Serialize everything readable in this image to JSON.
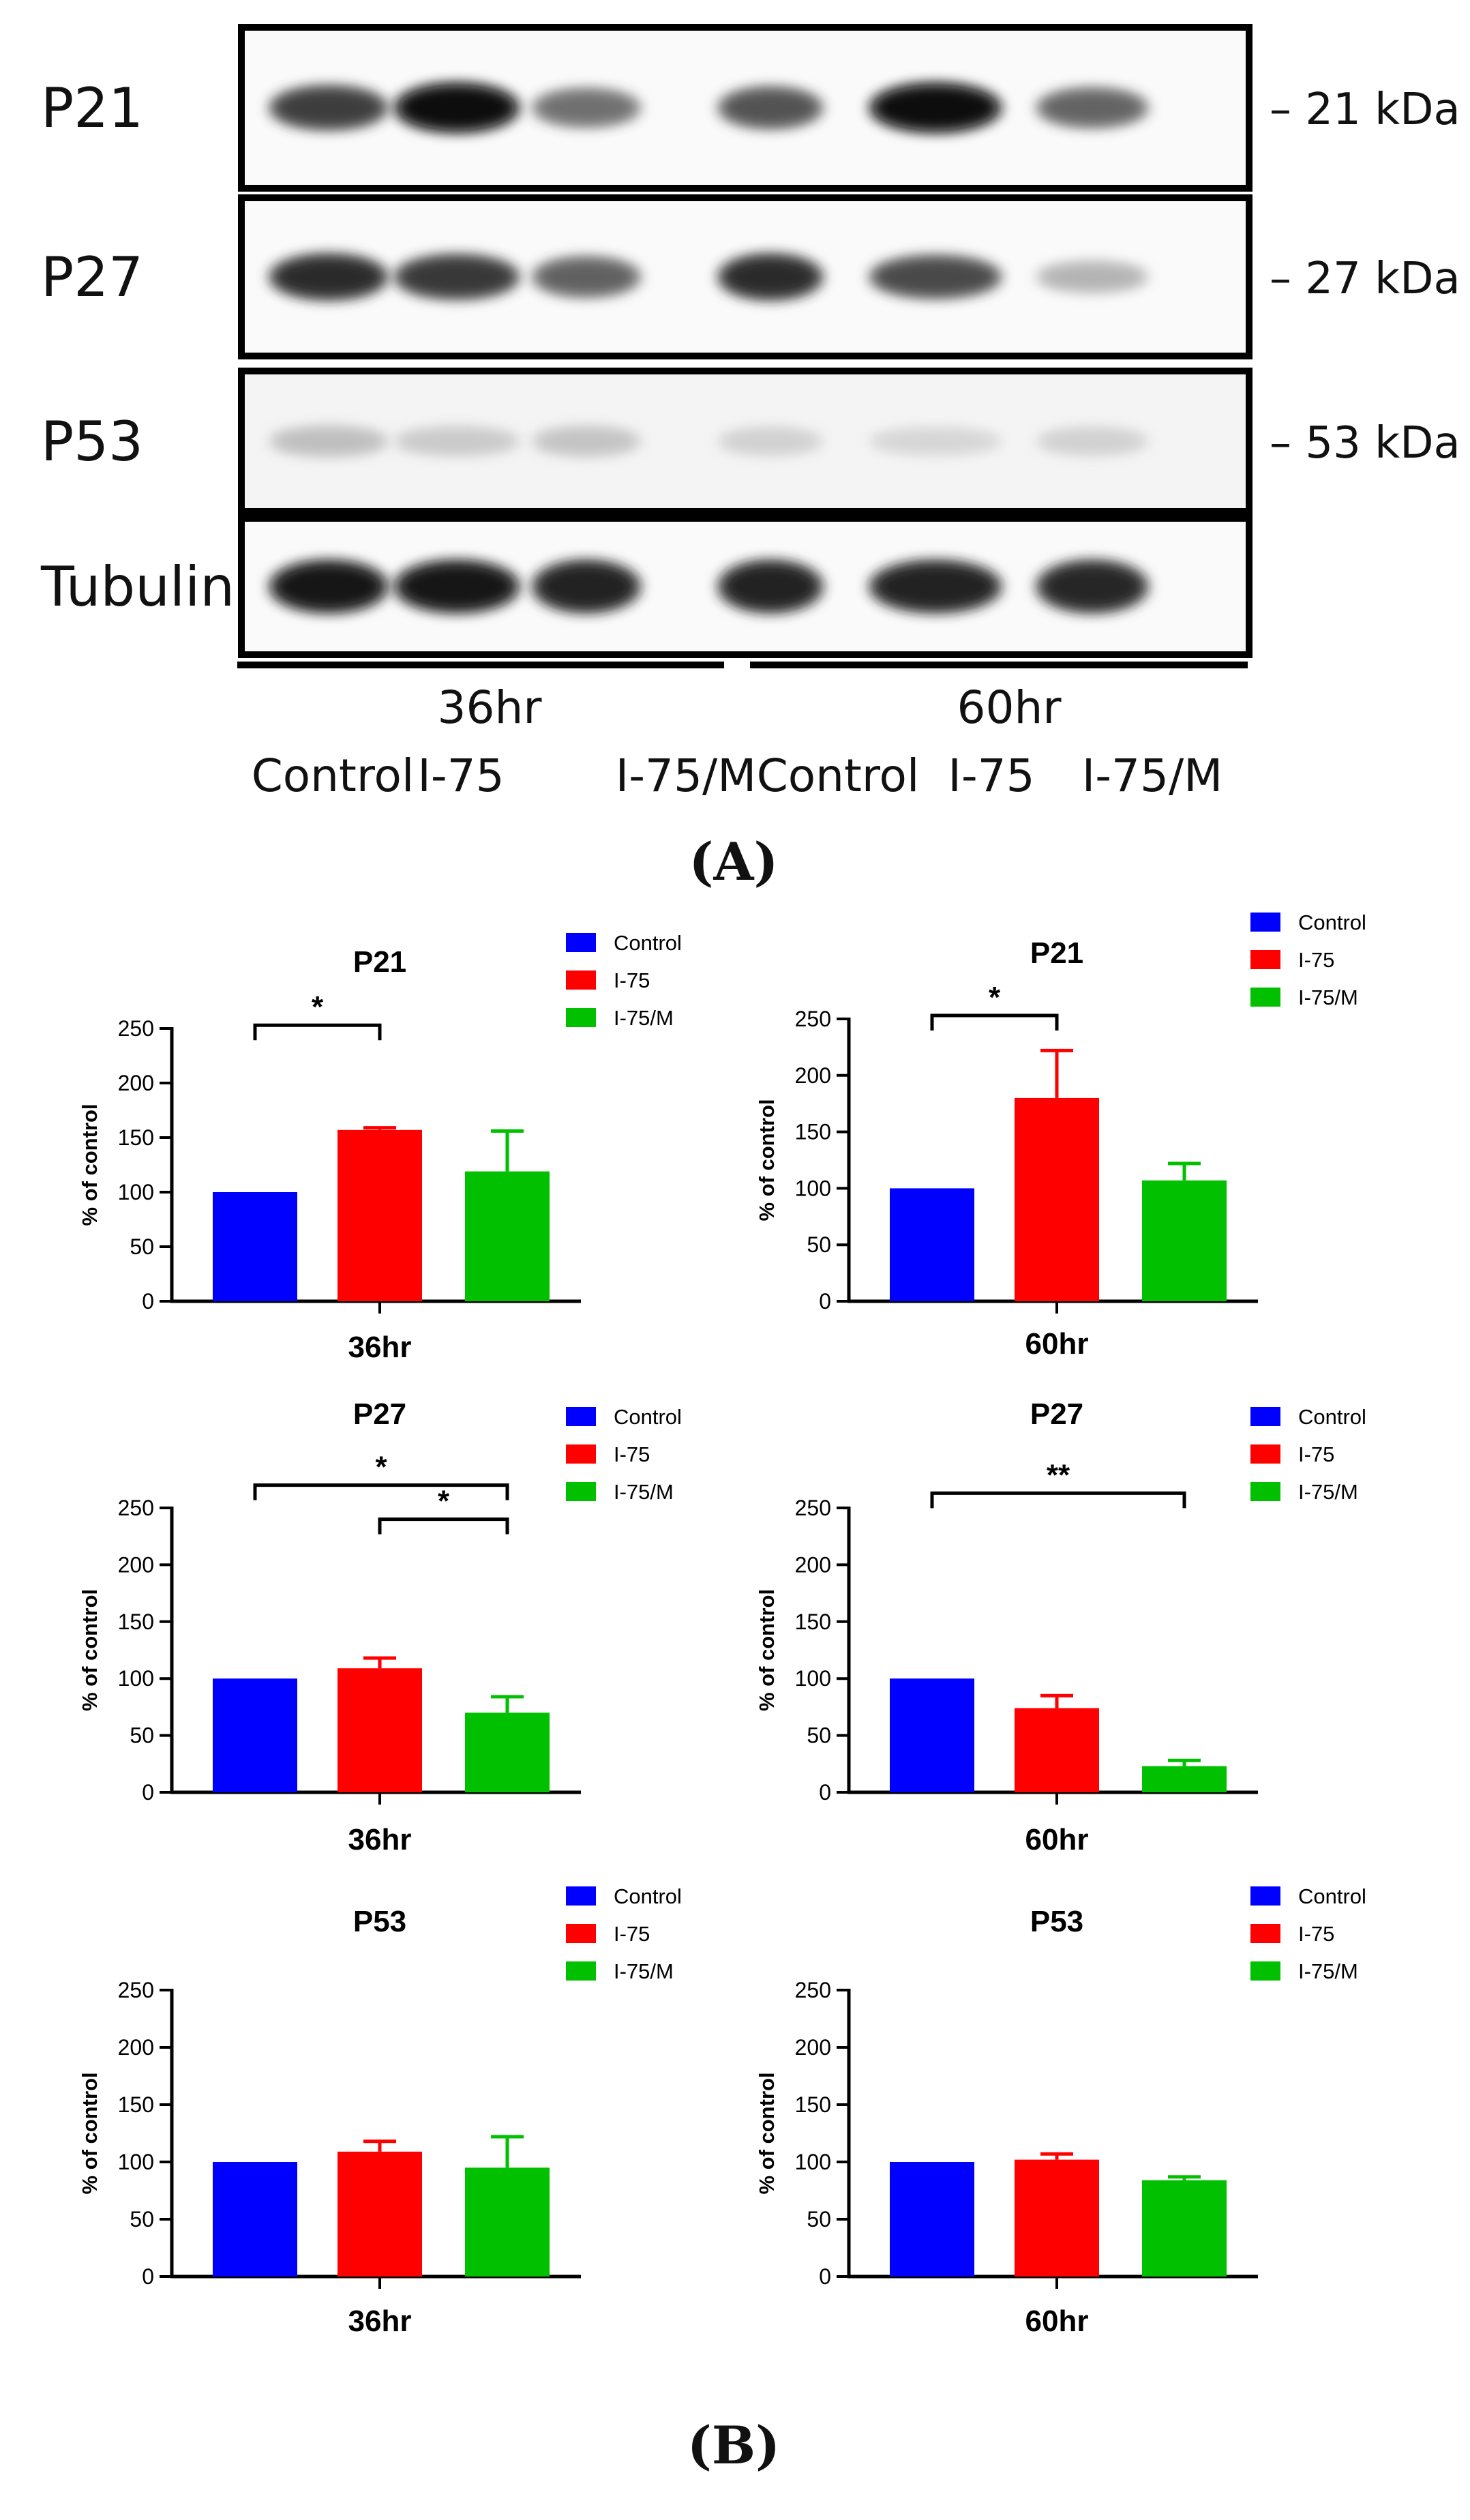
{
  "blot": {
    "rows": [
      {
        "label": "P21",
        "kda": "– 21 kDa",
        "intensities": [
          0.78,
          1.0,
          0.55,
          0.68,
          1.0,
          0.6
        ]
      },
      {
        "label": "P27",
        "kda": "– 27 kDa",
        "intensities": [
          0.85,
          0.8,
          0.62,
          0.85,
          0.72,
          0.25
        ]
      },
      {
        "label": "P53",
        "kda": "– 53 kDa",
        "intensities": [
          0.2,
          0.15,
          0.18,
          0.12,
          0.1,
          0.12
        ]
      },
      {
        "label": "Tubulin",
        "kda": "",
        "intensities": [
          0.95,
          0.95,
          0.9,
          0.9,
          0.9,
          0.88
        ]
      }
    ],
    "groups": [
      "36hr",
      "60hr"
    ],
    "lanes": [
      "Control",
      "I-75",
      "I-75/M",
      "Control",
      "I-75",
      "I-75/M"
    ],
    "panel_label_open": "(",
    "panel_label_letter": "A",
    "panel_label_close": ")"
  },
  "panel_b": {
    "label_open": "(",
    "label_letter": "B",
    "label_close": ")"
  },
  "colors": {
    "Control": "#0000ff",
    "I-75": "#ff0000",
    "I-75/M": "#00c000"
  },
  "chart_data": [
    {
      "type": "bar",
      "title": "P21",
      "xlabel": "36hr",
      "ylabel": "% of control",
      "categories": [
        "Control",
        "I-75",
        "I-75/M"
      ],
      "values": [
        100,
        157,
        119
      ],
      "errors": [
        0,
        2,
        37
      ],
      "ylim": [
        0,
        250
      ],
      "yticks": [
        "0",
        "50",
        "100",
        "150",
        "200",
        "250"
      ],
      "legend": [
        "Control",
        "I-75",
        "I-75/M"
      ],
      "significance": [
        {
          "from": 0,
          "to": 1,
          "label": "*",
          "y": 253
        }
      ]
    },
    {
      "type": "bar",
      "title": "P21",
      "xlabel": "60hr",
      "ylabel": "% of control",
      "categories": [
        "Control",
        "I-75",
        "I-75/M"
      ],
      "values": [
        100,
        180,
        107
      ],
      "errors": [
        0,
        42,
        15
      ],
      "ylim": [
        0,
        250
      ],
      "yticks": [
        "0",
        "50",
        "100",
        "150",
        "200",
        "250"
      ],
      "legend": [
        "Control",
        "I-75",
        "I-75/M"
      ],
      "significance": [
        {
          "from": 0,
          "to": 1,
          "label": "*",
          "y": 253
        }
      ]
    },
    {
      "type": "bar",
      "title": "P27",
      "xlabel": "36hr",
      "ylabel": "% of control",
      "categories": [
        "Control",
        "I-75",
        "I-75/M"
      ],
      "values": [
        100,
        109,
        70
      ],
      "errors": [
        0,
        9,
        14
      ],
      "ylim": [
        0,
        250
      ],
      "yticks": [
        "0",
        "50",
        "100",
        "150",
        "200",
        "250"
      ],
      "legend": [
        "Control",
        "I-75",
        "I-75/M"
      ],
      "significance": [
        {
          "from": 0,
          "to": 2,
          "label": "*",
          "y": 270
        },
        {
          "from": 1,
          "to": 2,
          "label": "*",
          "y": 240
        }
      ]
    },
    {
      "type": "bar",
      "title": "P27",
      "xlabel": "60hr",
      "ylabel": "% of control",
      "categories": [
        "Control",
        "I-75",
        "I-75/M"
      ],
      "values": [
        100,
        74,
        23
      ],
      "errors": [
        0,
        11,
        5
      ],
      "ylim": [
        0,
        250
      ],
      "yticks": [
        "0",
        "50",
        "100",
        "150",
        "200",
        "250"
      ],
      "legend": [
        "Control",
        "I-75",
        "I-75/M"
      ],
      "significance": [
        {
          "from": 0,
          "to": 2,
          "label": "**",
          "y": 263
        }
      ]
    },
    {
      "type": "bar",
      "title": "P53",
      "xlabel": "36hr",
      "ylabel": "% of control",
      "categories": [
        "Control",
        "I-75",
        "I-75/M"
      ],
      "values": [
        100,
        109,
        95
      ],
      "errors": [
        0,
        9,
        27
      ],
      "ylim": [
        0,
        250
      ],
      "yticks": [
        "0",
        "50",
        "100",
        "150",
        "200",
        "250"
      ],
      "legend": [
        "Control",
        "I-75",
        "I-75/M"
      ],
      "significance": []
    },
    {
      "type": "bar",
      "title": "P53",
      "xlabel": "60hr",
      "ylabel": "% of control",
      "categories": [
        "Control",
        "I-75",
        "I-75/M"
      ],
      "values": [
        100,
        102,
        84
      ],
      "errors": [
        0,
        5,
        3
      ],
      "ylim": [
        0,
        250
      ],
      "yticks": [
        "0",
        "50",
        "100",
        "150",
        "200",
        "250"
      ],
      "legend": [
        "Control",
        "I-75",
        "I-75/M"
      ],
      "significance": []
    }
  ]
}
